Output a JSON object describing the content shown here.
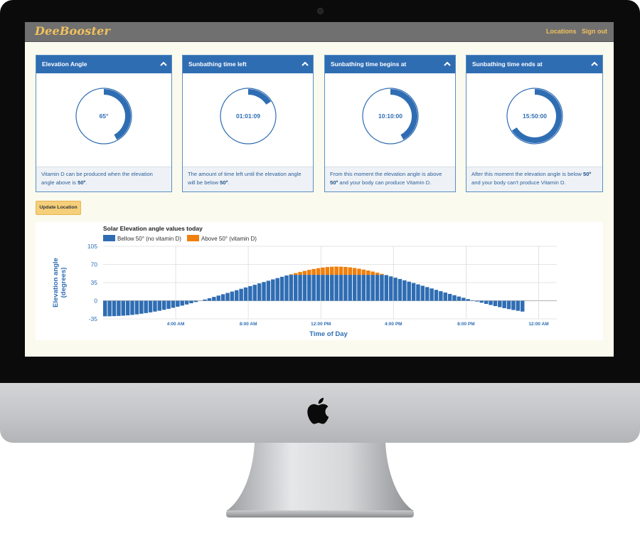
{
  "app": {
    "brand": "DeeBooster"
  },
  "nav": {
    "links": [
      "Locations",
      "Sign out"
    ]
  },
  "cards": [
    {
      "title": "Elevation Angle",
      "value": "65°",
      "fraction": 0.42,
      "foot_text": "Vitamin D can be produced when the elevation angle above is ",
      "foot_bold": "50º",
      "foot_end": "."
    },
    {
      "title": "Sunbathing time left",
      "value": "01:01:09",
      "fraction": 0.16,
      "foot_text": "The amount of time left until the elevation angle will be below ",
      "foot_bold": "50º",
      "foot_end": "."
    },
    {
      "title": "Sunbathing time begins at",
      "value": "10:10:00",
      "fraction": 0.42,
      "foot_text": "From this moment the elevation angle is above ",
      "foot_bold": "50º",
      "foot_end": " and your body can produce Vitamin D."
    },
    {
      "title": "Sunbathing time ends at",
      "value": "15:50:00",
      "fraction": 0.66,
      "foot_text": "After this moment the elevation angle is below ",
      "foot_bold": "50º",
      "foot_end": " and your body can't produce Vitamin D."
    }
  ],
  "buttons": {
    "update_location": "Update Location"
  },
  "colors": {
    "navbar": "#707070",
    "brand": "#f2c15d",
    "card_header": "#2f6db3",
    "below": "#2f6db3",
    "above": "#f07f0c",
    "page_bg": "#fbfaee"
  },
  "chart_data": {
    "type": "bar",
    "title": "Solar Elevation angle values today",
    "xlabel": "Time of Day",
    "ylabel": "Elevation angle (degrees)",
    "ylim": [
      -35,
      105
    ],
    "yticks": [
      105,
      70,
      35,
      0,
      -35
    ],
    "xlim_hours": [
      0,
      25
    ],
    "xticks": [
      {
        "hour": 4,
        "label": "4:00 AM"
      },
      {
        "hour": 8,
        "label": "8:00 AM"
      },
      {
        "hour": 12,
        "label": "12:00 PM"
      },
      {
        "hour": 16,
        "label": "4:00 PM"
      },
      {
        "hour": 20,
        "label": "8:00 PM"
      },
      {
        "hour": 24,
        "label": "12:00 AM"
      }
    ],
    "grid": true,
    "legend_position": "top-left",
    "threshold": 50,
    "series": [
      {
        "name": "Bellow 50° (no vitamin D)",
        "color": "#2f6db3"
      },
      {
        "name": "Above 50° (vitamin D)",
        "color": "#f07f0c"
      }
    ],
    "x_hours": [
      0,
      0.25,
      0.5,
      0.75,
      1,
      1.25,
      1.5,
      1.75,
      2,
      2.25,
      2.5,
      2.75,
      3,
      3.25,
      3.5,
      3.75,
      4,
      4.25,
      4.5,
      4.75,
      5,
      5.25,
      5.5,
      5.75,
      6,
      6.25,
      6.5,
      6.75,
      7,
      7.25,
      7.5,
      7.75,
      8,
      8.25,
      8.5,
      8.75,
      9,
      9.25,
      9.5,
      9.75,
      10,
      10.25,
      10.5,
      10.75,
      11,
      11.25,
      11.5,
      11.75,
      12,
      12.25,
      12.5,
      12.75,
      13,
      13.25,
      13.5,
      13.75,
      14,
      14.25,
      14.5,
      14.75,
      15,
      15.25,
      15.5,
      15.75,
      16,
      16.25,
      16.5,
      16.75,
      17,
      17.25,
      17.5,
      17.75,
      18,
      18.25,
      18.5,
      18.75,
      19,
      19.25,
      19.5,
      19.75,
      20,
      20.25,
      20.5,
      20.75,
      21,
      21.25,
      21.5,
      21.75,
      22,
      22.25,
      22.5,
      22.75,
      23
    ],
    "elevation": [
      -30,
      -30,
      -29.7,
      -29.3,
      -28.8,
      -28.1,
      -27.3,
      -26.3,
      -25.1,
      -23.8,
      -22.4,
      -20.9,
      -19.3,
      -17.5,
      -15.6,
      -13.6,
      -11.5,
      -9.4,
      -7.2,
      -4.8,
      -2.5,
      -0.1,
      2.4,
      4.8,
      7.4,
      9.9,
      12.5,
      15.1,
      17.7,
      20.3,
      23,
      25.6,
      28.2,
      30.8,
      33.5,
      36.1,
      38.6,
      41.2,
      43.7,
      46.2,
      48.7,
      51,
      53.3,
      55.5,
      57.6,
      59.6,
      61.3,
      62.8,
      64.1,
      65,
      65.6,
      65.9,
      65.7,
      65.2,
      64.4,
      63.2,
      61.8,
      60.1,
      58.3,
      56.3,
      54.1,
      51.8,
      49.5,
      47,
      44.5,
      42,
      39.4,
      36.8,
      34.2,
      31.6,
      28.9,
      26.3,
      23.7,
      21,
      18.4,
      15.8,
      13.2,
      10.7,
      8.1,
      5.7,
      3.2,
      0.9,
      -1.5,
      -3.8,
      -6.1,
      -8.2,
      -10.3,
      -12.3,
      -14.3,
      -16.1,
      -17.8,
      -19.4,
      -20.9,
      -22.2,
      -23.4
    ]
  }
}
